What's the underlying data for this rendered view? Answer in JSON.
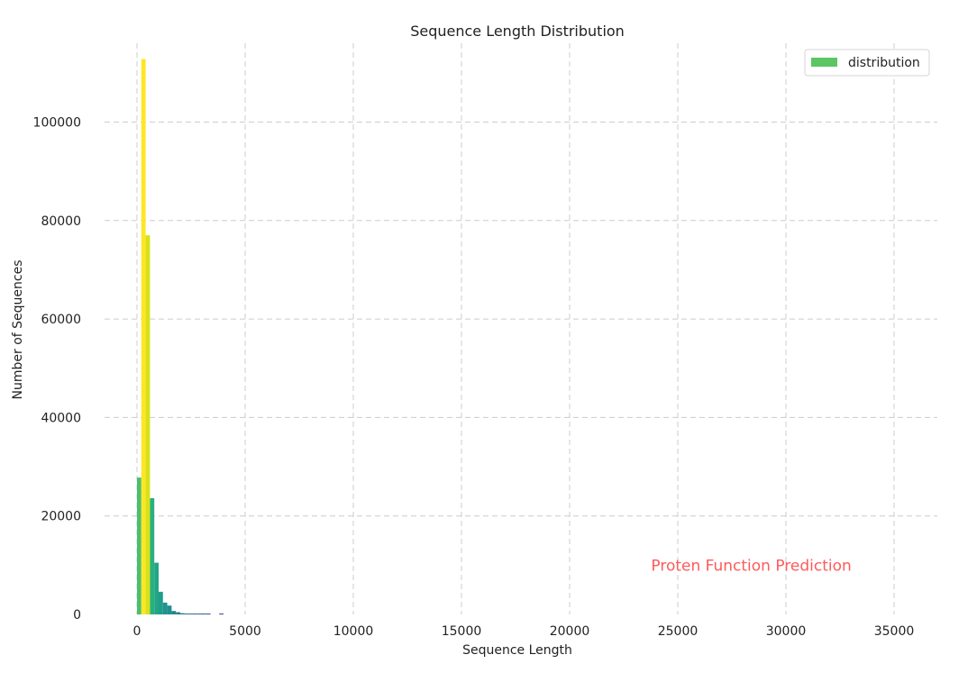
{
  "chart_data": {
    "type": "bar",
    "title": "Sequence Length Distribution",
    "xlabel": "Sequence Length",
    "ylabel": "Number of Sequences",
    "xlim": [
      -1500,
      37000
    ],
    "ylim": [
      0,
      116000
    ],
    "xticks": [
      0,
      5000,
      10000,
      15000,
      20000,
      25000,
      30000,
      35000
    ],
    "yticks": [
      0,
      20000,
      40000,
      60000,
      80000,
      100000
    ],
    "grid": true,
    "legend": {
      "placement": "top-right",
      "entries": [
        {
          "label": "distribution",
          "color": "#5cc663"
        }
      ]
    },
    "annotation": {
      "text": "Proten Function Prediction",
      "x": 28400,
      "y": 10000,
      "color": "#ff5a5a"
    },
    "bin_width": 200,
    "bars": [
      {
        "x_start": 0,
        "value": 27800,
        "color": "#4cbf6b"
      },
      {
        "x_start": 200,
        "value": 112800,
        "color": "#fde725"
      },
      {
        "x_start": 400,
        "value": 77000,
        "color": "#d8e219"
      },
      {
        "x_start": 600,
        "value": 23600,
        "color": "#2ab07f"
      },
      {
        "x_start": 800,
        "value": 10500,
        "color": "#21a685"
      },
      {
        "x_start": 1000,
        "value": 4600,
        "color": "#1f9e89"
      },
      {
        "x_start": 1200,
        "value": 2400,
        "color": "#1f948c"
      },
      {
        "x_start": 1400,
        "value": 1800,
        "color": "#20908d"
      },
      {
        "x_start": 1600,
        "value": 700,
        "color": "#24868e"
      },
      {
        "x_start": 1800,
        "value": 450,
        "color": "#277f8e"
      },
      {
        "x_start": 2000,
        "value": 250,
        "color": "#2a788e"
      },
      {
        "x_start": 2200,
        "value": 180,
        "color": "#2d708e"
      },
      {
        "x_start": 2400,
        "value": 130,
        "color": "#306a8e"
      },
      {
        "x_start": 2600,
        "value": 110,
        "color": "#33638d"
      },
      {
        "x_start": 2800,
        "value": 90,
        "color": "#355e8d"
      },
      {
        "x_start": 3000,
        "value": 70,
        "color": "#38588c"
      },
      {
        "x_start": 3200,
        "value": 50,
        "color": "#3b518b"
      },
      {
        "x_start": 3800,
        "value": 120,
        "color": "#414487"
      }
    ]
  }
}
